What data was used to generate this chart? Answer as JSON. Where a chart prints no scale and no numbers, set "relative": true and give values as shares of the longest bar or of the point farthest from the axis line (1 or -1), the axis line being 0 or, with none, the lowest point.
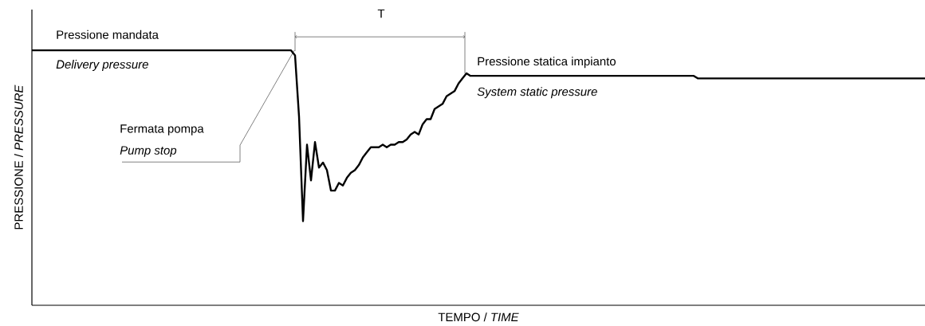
{
  "chart_data": {
    "type": "line",
    "relative": true,
    "xlabel": "TEMPO / *TIME*",
    "ylabel": "PRESSIONE / *PRESSURE*",
    "categories": [
      null,
      null,
      null,
      null,
      null,
      null,
      null,
      null,
      null,
      null,
      null,
      null,
      null,
      null,
      null,
      null,
      null,
      null,
      null,
      null,
      null,
      null,
      null,
      null,
      null,
      null,
      null,
      null,
      null,
      null,
      null,
      null,
      null,
      null,
      null,
      null,
      null,
      null,
      null,
      null,
      null,
      null,
      null,
      null,
      null,
      null,
      null,
      null,
      null,
      null,
      null,
      null,
      null,
      null,
      null,
      null,
      null,
      null,
      null,
      null,
      null,
      null,
      null,
      null,
      null,
      null,
      null,
      null,
      null,
      null,
      null,
      null,
      null,
      null,
      null,
      null,
      null,
      null,
      null,
      null,
      null,
      null,
      null,
      null,
      null,
      null,
      null,
      null,
      null,
      null,
      null,
      null,
      null,
      null,
      null,
      null,
      null,
      null,
      null,
      null,
      null,
      null,
      null,
      null,
      null,
      null,
      null,
      null,
      null,
      null,
      null,
      null,
      null,
      null,
      null,
      null,
      null,
      null,
      null,
      null,
      null,
      null,
      null,
      null,
      null,
      null,
      null,
      null,
      null,
      null,
      null,
      null,
      null,
      null,
      null,
      null,
      null,
      null,
      null,
      null,
      null,
      null,
      null,
      null,
      null,
      null,
      null,
      null,
      null,
      null,
      null,
      null,
      null,
      null,
      null,
      null,
      null,
      null,
      null,
      null,
      null,
      null,
      null,
      null,
      null,
      null,
      null,
      null,
      null,
      null,
      null,
      null,
      null,
      null,
      null,
      null,
      null,
      null,
      null,
      null,
      null,
      null,
      null,
      null,
      null,
      null,
      null,
      null,
      null,
      null,
      null,
      null,
      null,
      null,
      null,
      null,
      null,
      null,
      null,
      null,
      null,
      null,
      null,
      null,
      null,
      null,
      null,
      null,
      null,
      null,
      null,
      null,
      null,
      null,
      null,
      null,
      null,
      null,
      null,
      null,
      null,
      null,
      null,
      null,
      null
    ],
    "series": [
      {
        "color": "#000000",
        "values": [
          1,
          1,
          1,
          1,
          1,
          1,
          1,
          1,
          1,
          1,
          1,
          1,
          1,
          1,
          1,
          1,
          1,
          1,
          1,
          1,
          1,
          1,
          1,
          1,
          1,
          1,
          1,
          1,
          1,
          1,
          1,
          1,
          1,
          1,
          1,
          1,
          1,
          1,
          1,
          1,
          1,
          1,
          1,
          1,
          1,
          1,
          1,
          1,
          1,
          1,
          1,
          1,
          1,
          1,
          1,
          1,
          1,
          1,
          1,
          1,
          1,
          1,
          1,
          1,
          1,
          1,
          0.98,
          0.74,
          0.33,
          0.63,
          0.49,
          0.64,
          0.54,
          0.56,
          0.53,
          0.45,
          0.45,
          0.48,
          0.47,
          0.5,
          0.52,
          0.53,
          0.55,
          0.58,
          0.6,
          0.62,
          0.62,
          0.62,
          0.63,
          0.62,
          0.63,
          0.63,
          0.64,
          0.64,
          0.65,
          0.67,
          0.68,
          0.67,
          0.71,
          0.73,
          0.73,
          0.77,
          0.78,
          0.79,
          0.82,
          0.83,
          0.84,
          0.87,
          0.89,
          0.91,
          0.9,
          0.9,
          0.9,
          0.9,
          0.9,
          0.9,
          0.9,
          0.9,
          0.9,
          0.9,
          0.9,
          0.9,
          0.9,
          0.9,
          0.9,
          0.9,
          0.9,
          0.9,
          0.9,
          0.9,
          0.9,
          0.9,
          0.9,
          0.9,
          0.9,
          0.9,
          0.9,
          0.9,
          0.9,
          0.9,
          0.9,
          0.9,
          0.9,
          0.9,
          0.9,
          0.9,
          0.9,
          0.9,
          0.9,
          0.9,
          0.9,
          0.9,
          0.9,
          0.9,
          0.9,
          0.9,
          0.9,
          0.9,
          0.9,
          0.9,
          0.9,
          0.9,
          0.9,
          0.9,
          0.9,
          0.9,
          0.9,
          0.89,
          0.89,
          0.89,
          0.89,
          0.89,
          0.89,
          0.89,
          0.89,
          0.89,
          0.89,
          0.89,
          0.89,
          0.89,
          0.89,
          0.89,
          0.89,
          0.89,
          0.89,
          0.89,
          0.89,
          0.89,
          0.89,
          0.89,
          0.89,
          0.89,
          0.89,
          0.89,
          0.89,
          0.89,
          0.89,
          0.89,
          0.89,
          0.89,
          0.89,
          0.89,
          0.89,
          0.89,
          0.89,
          0.89,
          0.89,
          0.89,
          0.89,
          0.89,
          0.89,
          0.89,
          0.89,
          0.89,
          0.89,
          0.89,
          0.89,
          0.89,
          0.89,
          0.89,
          0.89,
          0.89,
          0.89,
          0.89,
          0.89
        ]
      }
    ],
    "annotations": [
      "Pressione mandata",
      "Delivery pressure",
      "Fermata pompa",
      "Pump stop",
      "Pressione statica impianto",
      "System static pressure",
      "T"
    ]
  }
}
